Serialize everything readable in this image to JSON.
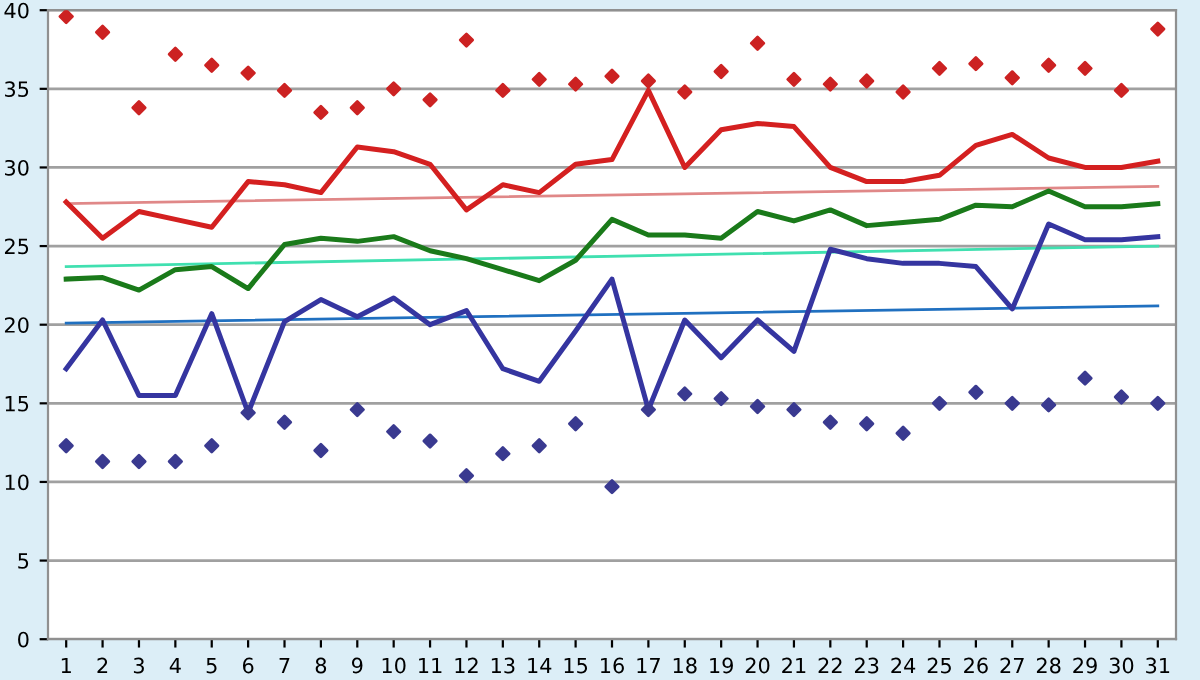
{
  "chart_data": {
    "type": "line",
    "categories": [
      "1",
      "2",
      "3",
      "4",
      "5",
      "6",
      "7",
      "8",
      "9",
      "10",
      "11",
      "12",
      "13",
      "14",
      "15",
      "16",
      "17",
      "18",
      "19",
      "20",
      "21",
      "22",
      "23",
      "24",
      "25",
      "26",
      "27",
      "28",
      "29",
      "30",
      "31"
    ],
    "ylim": [
      0,
      40
    ],
    "yticks": [
      0,
      5,
      10,
      15,
      20,
      25,
      30,
      35,
      40
    ],
    "grid": "y",
    "legend": false,
    "series": [
      {
        "type": "scatter",
        "marker": "diamond",
        "color": "#cc2222",
        "values": [
          39.6,
          38.6,
          33.8,
          37.2,
          36.5,
          36.0,
          34.9,
          33.5,
          33.8,
          35.0,
          34.3,
          38.1,
          34.9,
          35.6,
          35.3,
          35.8,
          35.5,
          34.8,
          36.1,
          37.9,
          35.6,
          35.3,
          35.5,
          34.8,
          36.3,
          36.6,
          35.7,
          36.5,
          36.3,
          34.9,
          38.8
        ]
      },
      {
        "type": "scatter",
        "marker": "diamond",
        "color": "#3a3a90",
        "values": [
          12.3,
          11.3,
          11.3,
          11.3,
          12.3,
          14.4,
          13.8,
          12.0,
          14.6,
          13.2,
          12.6,
          10.4,
          11.8,
          12.3,
          13.7,
          9.7,
          14.6,
          15.6,
          15.3,
          14.8,
          14.6,
          13.8,
          13.7,
          13.1,
          15.0,
          15.7,
          15.0,
          14.9,
          16.6,
          15.4,
          15.0
        ]
      },
      {
        "color": "#e08888",
        "x": [
          "1",
          "31"
        ],
        "values": [
          27.7,
          28.8
        ]
      },
      {
        "color": "#40e0b0",
        "x": [
          "1",
          "31"
        ],
        "values": [
          23.7,
          25.0
        ]
      },
      {
        "color": "#2070c0",
        "x": [
          "1",
          "31"
        ],
        "values": [
          20.1,
          21.2
        ]
      },
      {
        "color": "#d42020",
        "values": [
          27.8,
          25.5,
          27.2,
          26.7,
          26.2,
          29.1,
          28.9,
          28.4,
          31.3,
          31.0,
          30.2,
          27.3,
          28.9,
          28.4,
          30.2,
          30.5,
          34.9,
          30.0,
          32.4,
          32.8,
          32.6,
          30.0,
          29.1,
          29.1,
          29.5,
          31.4,
          32.1,
          30.6,
          30.0,
          30.0,
          30.4
        ]
      },
      {
        "color": "#1a7a1a",
        "values": [
          22.9,
          23.0,
          22.2,
          23.5,
          23.7,
          22.3,
          25.1,
          25.5,
          25.3,
          25.6,
          24.7,
          24.2,
          23.5,
          22.8,
          24.1,
          26.7,
          25.7,
          25.7,
          25.5,
          27.2,
          26.6,
          27.3,
          26.3,
          26.5,
          26.7,
          27.6,
          27.5,
          28.5,
          27.5,
          27.5,
          27.7
        ]
      },
      {
        "color": "#3535a0",
        "values": [
          17.2,
          20.3,
          15.5,
          15.5,
          20.7,
          14.4,
          20.2,
          21.6,
          20.5,
          21.7,
          20.0,
          20.9,
          17.2,
          16.4,
          19.6,
          22.9,
          14.6,
          20.3,
          17.9,
          20.3,
          18.3,
          24.8,
          24.2,
          23.9,
          23.9,
          23.7,
          21.0,
          26.4,
          25.4,
          25.4,
          25.6
        ]
      }
    ]
  }
}
